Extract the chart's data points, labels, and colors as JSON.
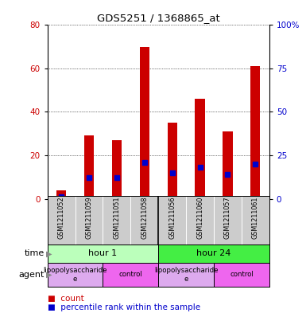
{
  "title": "GDS5251 / 1368865_at",
  "samples": [
    "GSM1211052",
    "GSM1211059",
    "GSM1211051",
    "GSM1211058",
    "GSM1211056",
    "GSM1211060",
    "GSM1211057",
    "GSM1211061"
  ],
  "counts": [
    4,
    29,
    27,
    70,
    35,
    46,
    31,
    61
  ],
  "percentiles": [
    1,
    12,
    12,
    21,
    15,
    18,
    14,
    20
  ],
  "left_ylim": [
    0,
    80
  ],
  "right_ylim": [
    0,
    100
  ],
  "left_yticks": [
    0,
    20,
    40,
    60,
    80
  ],
  "right_yticks": [
    0,
    25,
    50,
    75,
    100
  ],
  "right_yticklabels": [
    "0",
    "25",
    "50",
    "75",
    "100%"
  ],
  "bar_color": "#cc0000",
  "percentile_color": "#0000cc",
  "grid_color": "#000000",
  "time_groups": [
    {
      "label": "hour 1",
      "start": 0,
      "end": 4,
      "color": "#bbffbb"
    },
    {
      "label": "hour 24",
      "start": 4,
      "end": 8,
      "color": "#44ee44"
    }
  ],
  "agent_groups": [
    {
      "label": "lipopolysaccharide\ne",
      "start": 0,
      "end": 2,
      "color": "#ddaaee"
    },
    {
      "label": "control",
      "start": 2,
      "end": 4,
      "color": "#ee66ee"
    },
    {
      "label": "lipopolysaccharide\ne",
      "start": 4,
      "end": 6,
      "color": "#ddaaee"
    },
    {
      "label": "control",
      "start": 6,
      "end": 8,
      "color": "#ee66ee"
    }
  ],
  "bg_color": "#cccccc",
  "bar_width": 0.35,
  "percentile_marker_size": 4
}
